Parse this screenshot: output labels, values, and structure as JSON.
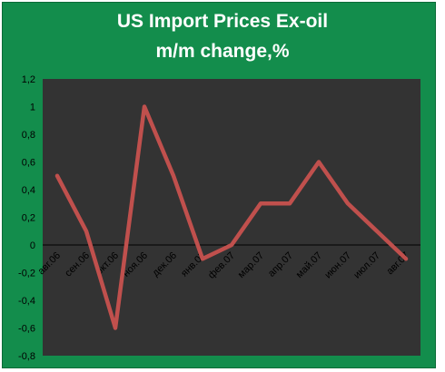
{
  "chart_data": {
    "type": "line",
    "title": "US Import Prices Ex-oil",
    "subtitle": "m/m change,%",
    "xlabel": "",
    "ylabel": "",
    "categories": [
      "авг.06",
      "сен.06",
      "окт.06",
      "ноя.06",
      "дек.06",
      "янв.07",
      "фев.07",
      "мар.07",
      "апр.07",
      "май.07",
      "июн.07",
      "июл.07",
      "авг.07"
    ],
    "series": [
      {
        "values": [
          0.5,
          0.1,
          -0.6,
          1.0,
          0.5,
          -0.1,
          0.0,
          0.3,
          0.3,
          0.6,
          0.3,
          0.1,
          -0.1
        ]
      }
    ],
    "ylim": [
      -0.8,
      1.2
    ],
    "yticks": [
      1.2,
      1.0,
      0.8,
      0.6,
      0.4,
      0.2,
      0.0,
      -0.2,
      -0.4,
      -0.6,
      -0.8
    ],
    "ytick_labels": [
      "1,2",
      "1",
      "0,8",
      "0,6",
      "0,4",
      "0,2",
      "0",
      "-0,2",
      "-0,4",
      "-0,6",
      "-0,8"
    ],
    "grid": false,
    "legend": "none",
    "colors": {
      "background": "#138d4c",
      "plot_area": "#333333",
      "line": "#c0504d",
      "title": "#ffffff"
    }
  }
}
